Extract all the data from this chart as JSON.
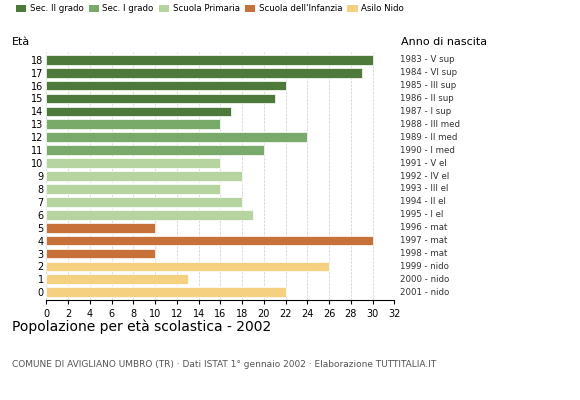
{
  "ages": [
    18,
    17,
    16,
    15,
    14,
    13,
    12,
    11,
    10,
    9,
    8,
    7,
    6,
    5,
    4,
    3,
    2,
    1,
    0
  ],
  "values": [
    30,
    29,
    22,
    21,
    17,
    16,
    24,
    20,
    16,
    18,
    16,
    18,
    19,
    10,
    30,
    10,
    26,
    13,
    22
  ],
  "colors": [
    "#4d7a3a",
    "#4d7a3a",
    "#4d7a3a",
    "#4d7a3a",
    "#4d7a3a",
    "#7aaa6a",
    "#7aaa6a",
    "#7aaa6a",
    "#b5d4a0",
    "#b5d4a0",
    "#b5d4a0",
    "#b5d4a0",
    "#b5d4a0",
    "#c8703a",
    "#c8703a",
    "#c8703a",
    "#f5d080",
    "#f5d080",
    "#f5d080"
  ],
  "right_labels": [
    "1983 - V sup",
    "1984 - VI sup",
    "1985 - III sup",
    "1986 - II sup",
    "1987 - I sup",
    "1988 - III med",
    "1989 - II med",
    "1990 - I med",
    "1991 - V el",
    "1992 - IV el",
    "1993 - III el",
    "1994 - II el",
    "1995 - I el",
    "1996 - mat",
    "1997 - mat",
    "1998 - mat",
    "1999 - nido",
    "2000 - nido",
    "2001 - nido"
  ],
  "legend_labels": [
    "Sec. II grado",
    "Sec. I grado",
    "Scuola Primaria",
    "Scuola dell'Infanzia",
    "Asilo Nido"
  ],
  "legend_colors": [
    "#4d7a3a",
    "#7aaa6a",
    "#b5d4a0",
    "#c8703a",
    "#f5d080"
  ],
  "title": "Popolazione per età scolastica - 2002",
  "subtitle": "COMUNE DI AVIGLIANO UMBRO (TR) · Dati ISTAT 1° gennaio 2002 · Elaborazione TUTTITALIA.IT",
  "xlabel_eta": "Età",
  "xlabel_anno": "Anno di nascita",
  "xlim": [
    0,
    32
  ],
  "xticks": [
    0,
    2,
    4,
    6,
    8,
    10,
    12,
    14,
    16,
    18,
    20,
    22,
    24,
    26,
    28,
    30,
    32
  ],
  "bg_color": "#ffffff",
  "bar_height": 0.75
}
